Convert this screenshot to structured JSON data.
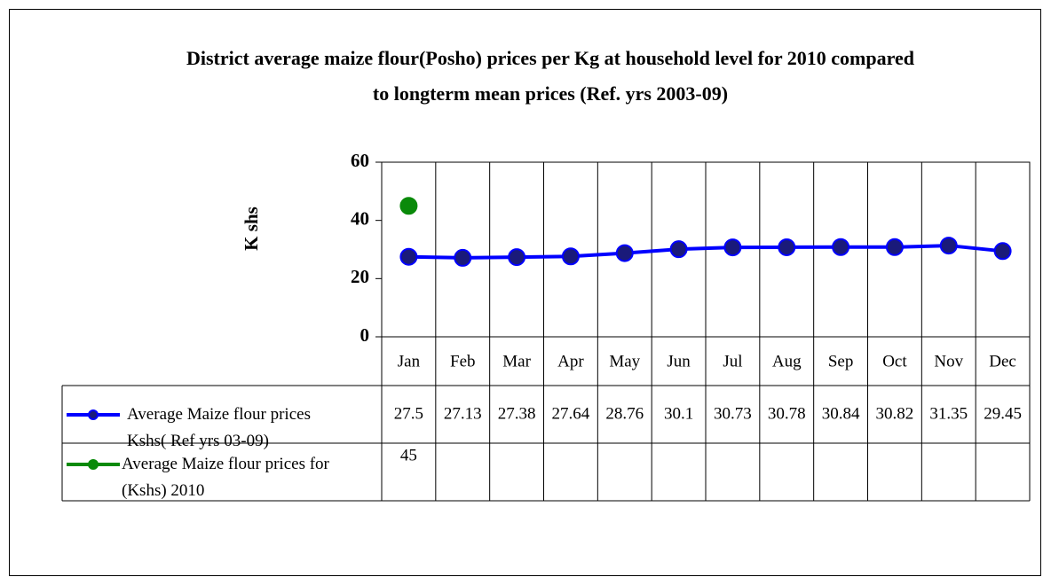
{
  "chart_data": {
    "type": "line",
    "title": [
      "District average maize flour(Posho) prices per Kg at household level for 2010 compared",
      "to longterm mean prices (Ref. yrs 2003-09)"
    ],
    "y_label": "K shs",
    "categories": [
      "Jan",
      "Feb",
      "Mar",
      "Apr",
      "May",
      "Jun",
      "Jul",
      "Aug",
      "Sep",
      "Oct",
      "Nov",
      "Dec"
    ],
    "series": [
      {
        "name": "Average Maize flour prices Kshs( Ref yrs 03-09)",
        "color": "#0000ff",
        "values": [
          27.5,
          27.13,
          27.38,
          27.64,
          28.76,
          30.1,
          30.73,
          30.78,
          30.84,
          30.82,
          31.35,
          29.45
        ]
      },
      {
        "name": "Average Maize flour prices for (Kshs) 2010",
        "color": "#0a8a0a",
        "values": [
          45,
          null,
          null,
          null,
          null,
          null,
          null,
          null,
          null,
          null,
          null,
          null
        ]
      }
    ],
    "ylim": [
      0,
      60
    ],
    "yticks": [
      0,
      20,
      40,
      60
    ],
    "data_table": true
  }
}
